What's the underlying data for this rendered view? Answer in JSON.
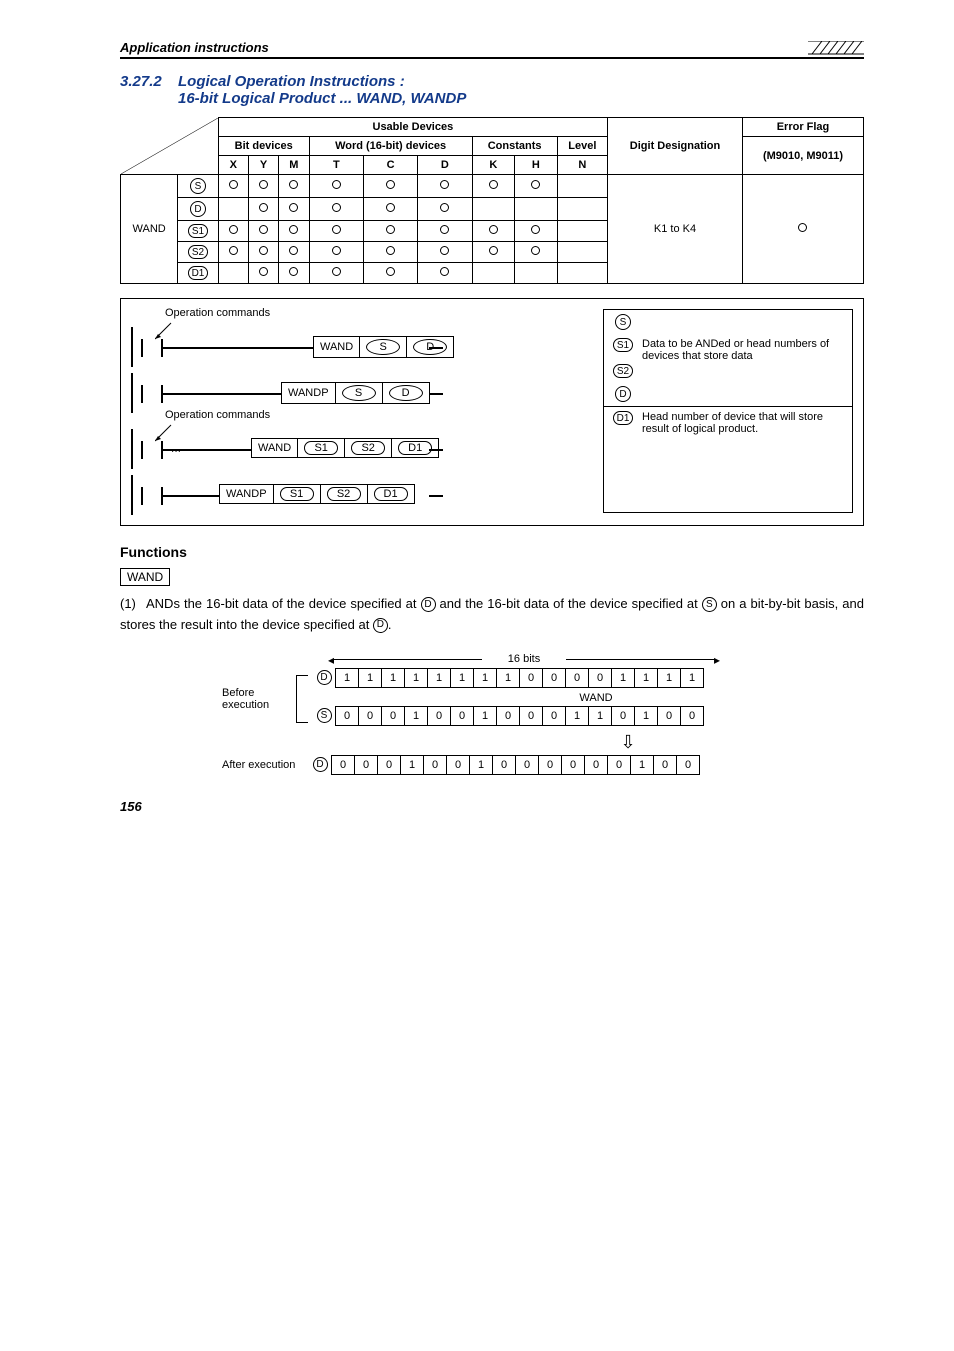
{
  "header": {
    "title": "Application instructions"
  },
  "section": {
    "number": "3.27.2",
    "line1": "Logical Operation Instructions :",
    "line2": "16-bit Logical Product ... WAND, WANDP"
  },
  "table": {
    "usable": "Usable Devices",
    "bit": "Bit devices",
    "word": "Word (16-bit) devices",
    "constants": "Constants",
    "level": "Level",
    "digit": "Digit Designation",
    "error": "Error Flag",
    "mcodes": "(M9010, M9011)",
    "cols": [
      "X",
      "Y",
      "M",
      "T",
      "C",
      "D",
      "K",
      "H",
      "N"
    ],
    "instr": "WAND",
    "digit_val": "K1 to K4",
    "rows": [
      {
        "sym": "S",
        "style": "circle",
        "cells": [
          "o",
          "o",
          "o",
          "o",
          "o",
          "o",
          "o",
          "o",
          ""
        ]
      },
      {
        "sym": "D",
        "style": "circle",
        "cells": [
          "",
          "o",
          "o",
          "o",
          "o",
          "o",
          "",
          "",
          ""
        ]
      },
      {
        "sym": "S1",
        "style": "oval",
        "cells": [
          "o",
          "o",
          "o",
          "o",
          "o",
          "o",
          "o",
          "o",
          ""
        ]
      },
      {
        "sym": "S2",
        "style": "oval",
        "cells": [
          "o",
          "o",
          "o",
          "o",
          "o",
          "o",
          "o",
          "o",
          ""
        ]
      },
      {
        "sym": "D1",
        "style": "oval",
        "cells": [
          "",
          "o",
          "o",
          "o",
          "o",
          "o",
          "",
          "",
          ""
        ]
      }
    ]
  },
  "ladder": {
    "op_label": "Operation commands",
    "wand": "WAND",
    "wandp": "WANDP",
    "s": "S",
    "d": "D",
    "s1": "S1",
    "s2": "S2",
    "d1": "D1",
    "legend_top": "Data to be ANDed or head numbers of devices that store data",
    "legend_bottom": "Head number of device that will store result of logical product."
  },
  "functions": {
    "heading": "Functions",
    "boxed": "WAND",
    "num": "(1)",
    "text_a": "ANDs the 16-bit data of the device specified at ",
    "d": "D",
    "text_b": " and the 16-bit data of the device specified at ",
    "s": "S",
    "text_c": " on a bit-by-bit basis, and stores the result into the device specified at ",
    "text_d": "."
  },
  "bits": {
    "span": "16 bits",
    "before": "Before execution",
    "after": "After execution",
    "wand": "WAND",
    "d": [
      "1",
      "1",
      "1",
      "1",
      "1",
      "1",
      "1",
      "1",
      "0",
      "0",
      "0",
      "0",
      "1",
      "1",
      "1",
      "1"
    ],
    "s": [
      "0",
      "0",
      "0",
      "1",
      "0",
      "0",
      "1",
      "0",
      "0",
      "0",
      "1",
      "1",
      "0",
      "1",
      "0",
      "0"
    ],
    "r": [
      "0",
      "0",
      "0",
      "1",
      "0",
      "0",
      "1",
      "0",
      "0",
      "0",
      "0",
      "0",
      "0",
      "1",
      "0",
      "0"
    ]
  },
  "page": "156"
}
